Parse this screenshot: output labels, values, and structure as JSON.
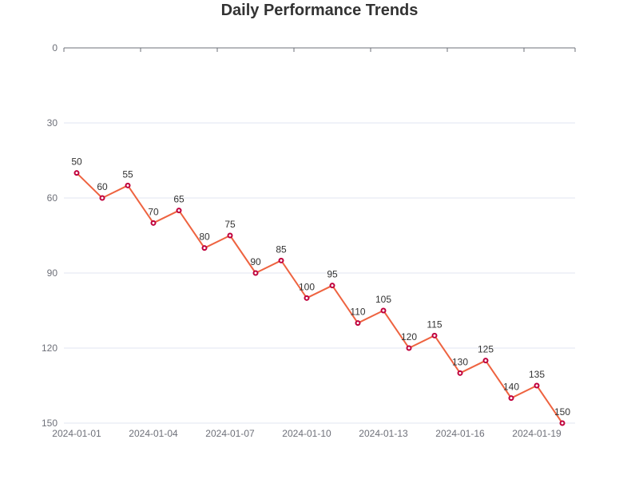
{
  "chart_data": {
    "type": "line",
    "title": "Daily Performance Trends",
    "xlabel": "",
    "ylabel": "",
    "x": [
      "2024-01-01",
      "2024-01-02",
      "2024-01-03",
      "2024-01-04",
      "2024-01-05",
      "2024-01-06",
      "2024-01-07",
      "2024-01-08",
      "2024-01-09",
      "2024-01-10",
      "2024-01-11",
      "2024-01-12",
      "2024-01-13",
      "2024-01-14",
      "2024-01-15",
      "2024-01-16",
      "2024-01-17",
      "2024-01-18",
      "2024-01-19",
      "2024-01-20"
    ],
    "x_tick_labels": [
      "2024-01-01",
      "2024-01-04",
      "2024-01-07",
      "2024-01-10",
      "2024-01-13",
      "2024-01-16",
      "2024-01-19"
    ],
    "series": [
      {
        "values": [
          50,
          60,
          55,
          70,
          65,
          80,
          75,
          90,
          85,
          100,
          95,
          110,
          105,
          120,
          115,
          130,
          125,
          140,
          135,
          150
        ],
        "line_color": "#ee6340",
        "marker_color": "#c0003c"
      }
    ],
    "y_ticks": [
      0,
      30,
      60,
      90,
      120,
      150
    ],
    "ylim": [
      0,
      150
    ],
    "y_inverted": true,
    "grid": true,
    "axis_color": "#6e7079",
    "grid_color": "#e0e6f1",
    "data_labels": true
  }
}
